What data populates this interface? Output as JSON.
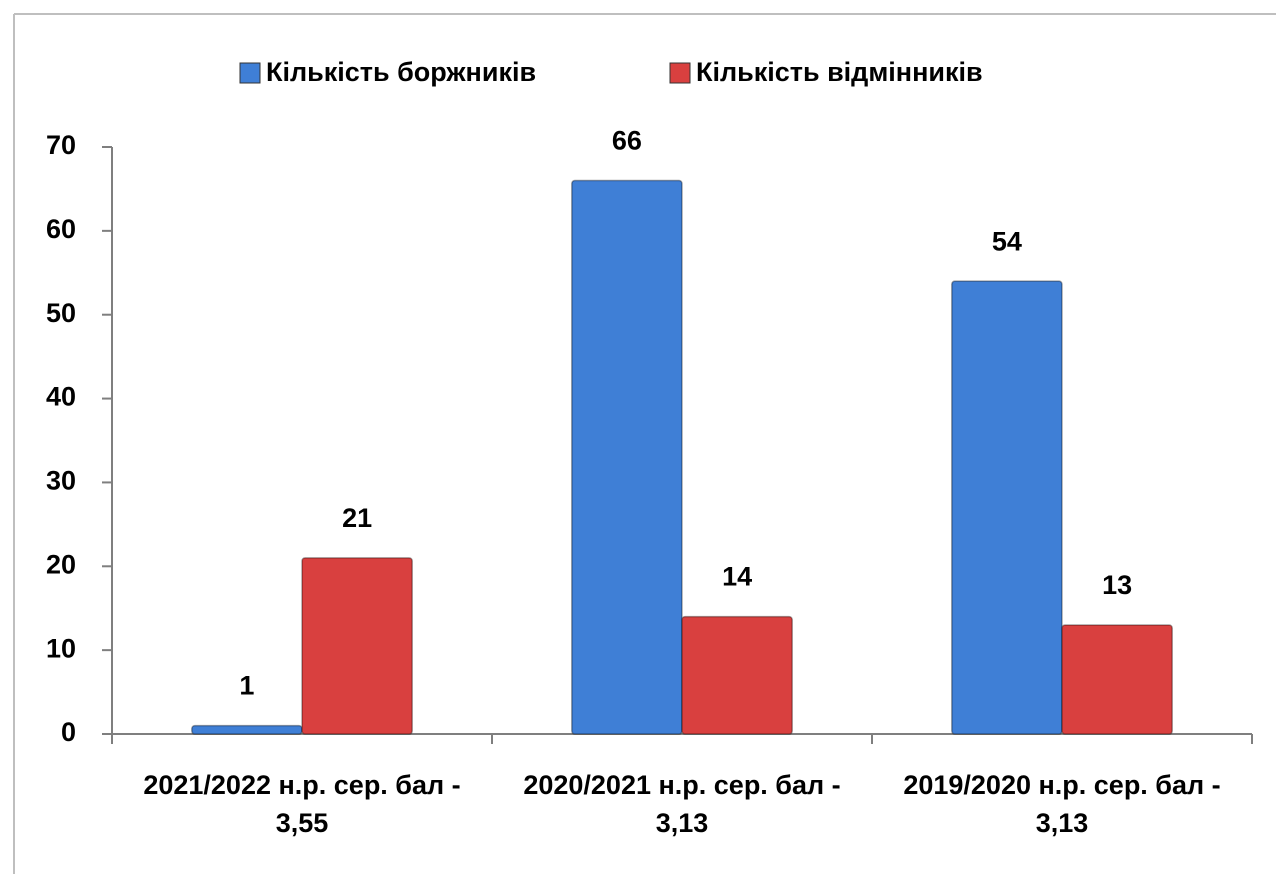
{
  "chart_data": {
    "type": "bar",
    "categories": [
      "2021/2022 н.р. сер. бал - 3,55",
      "2020/2021 н.р. сер. бал - 3,13",
      "2019/2020 н.р. сер. бал - 3,13"
    ],
    "series": [
      {
        "name": "Кількість боржників",
        "color": "#3f7fd6",
        "values": [
          1,
          66,
          54
        ]
      },
      {
        "name": "Кількість відмінників",
        "color": "#d9403f",
        "values": [
          21,
          14,
          13
        ]
      }
    ],
    "ylim": [
      0,
      70
    ],
    "yticks": [
      0,
      10,
      20,
      30,
      40,
      50,
      60,
      70
    ],
    "legend": "top"
  }
}
